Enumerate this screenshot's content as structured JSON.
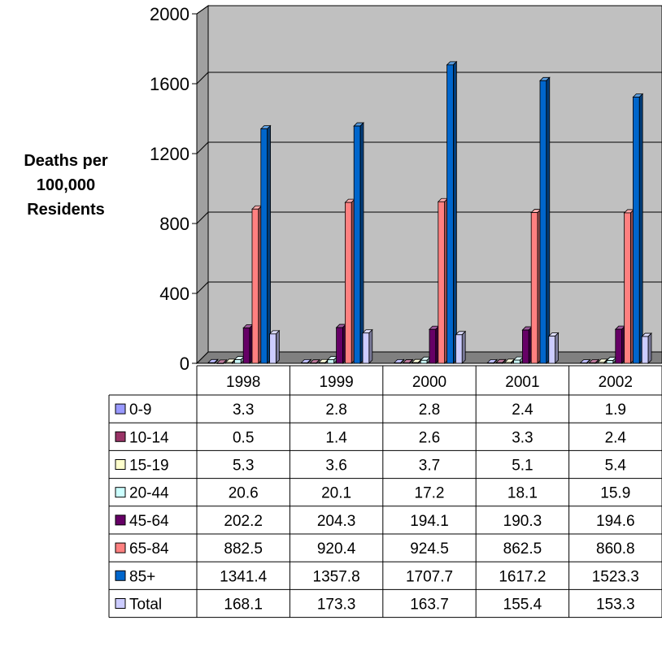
{
  "chart_data": {
    "type": "bar",
    "ylabel_lines": [
      "Deaths per",
      "100,000",
      "Residents"
    ],
    "ylim": [
      0,
      2000
    ],
    "y_ticks": [
      "0",
      "400",
      "800",
      "1200",
      "1600",
      "2000"
    ],
    "y_tick_values": [
      0,
      400,
      800,
      1200,
      1600,
      2000
    ],
    "grid": true,
    "categories": [
      "1998",
      "1999",
      "2000",
      "2001",
      "2002"
    ],
    "series": [
      {
        "name": "0-9",
        "color": "#9999ff",
        "values": [
          3.3,
          2.8,
          2.8,
          2.4,
          1.9
        ],
        "labels": [
          "3.3",
          "2.8",
          "2.8",
          "2.4",
          "1.9"
        ]
      },
      {
        "name": "10-14",
        "color": "#993366",
        "values": [
          0.5,
          1.4,
          2.6,
          3.3,
          2.4
        ],
        "labels": [
          "0.5",
          "1.4",
          "2.6",
          "3.3",
          "2.4"
        ]
      },
      {
        "name": "15-19",
        "color": "#ffffcc",
        "values": [
          5.3,
          3.6,
          3.7,
          5.1,
          5.4
        ],
        "labels": [
          "5.3",
          "3.6",
          "3.7",
          "5.1",
          "5.4"
        ]
      },
      {
        "name": "20-44",
        "color": "#ccffff",
        "values": [
          20.6,
          20.1,
          17.2,
          18.1,
          15.9
        ],
        "labels": [
          "20.6",
          "20.1",
          "17.2",
          "18.1",
          "15.9"
        ]
      },
      {
        "name": "45-64",
        "color": "#660066",
        "values": [
          202.2,
          204.3,
          194.1,
          190.3,
          194.6
        ],
        "labels": [
          "202.2",
          "204.3",
          "194.1",
          "190.3",
          "194.6"
        ]
      },
      {
        "name": "65-84",
        "color": "#ff8080",
        "values": [
          882.5,
          920.4,
          924.5,
          862.5,
          860.8
        ],
        "labels": [
          "882.5",
          "920.4",
          "924.5",
          "862.5",
          "860.8"
        ]
      },
      {
        "name": "85+",
        "color": "#0066cc",
        "values": [
          1341.4,
          1357.8,
          1707.7,
          1617.2,
          1523.3
        ],
        "labels": [
          "1341.4",
          "1357.8",
          "1707.7",
          "1617.2",
          "1523.3"
        ]
      },
      {
        "name": "Total",
        "color": "#ccccff",
        "values": [
          168.1,
          173.3,
          163.7,
          155.4,
          153.3
        ],
        "labels": [
          "168.1",
          "173.3",
          "163.7",
          "155.4",
          "153.3"
        ]
      }
    ],
    "colors": {
      "plot_wall": "#c0c0c0",
      "floor": "#808080",
      "grid": "#000000"
    },
    "data_table": true
  }
}
